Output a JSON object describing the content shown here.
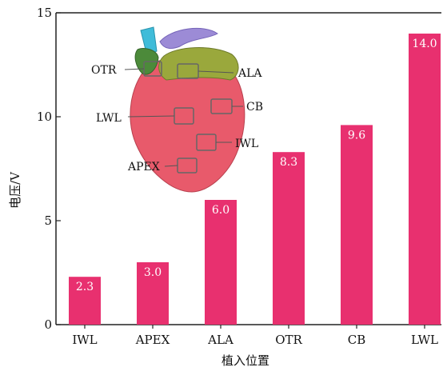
{
  "chart_data": {
    "type": "bar",
    "categories": [
      "IWL",
      "APEX",
      "ALA",
      "OTR",
      "CB",
      "LWL"
    ],
    "values": [
      2.3,
      3.0,
      6.0,
      8.3,
      9.6,
      14.0
    ],
    "data_labels": [
      "2.3",
      "3.0",
      "6.0",
      "8.3",
      "9.6",
      "14.0"
    ],
    "title": "",
    "xlabel": "植入位置",
    "ylabel": "电压/V",
    "ylim": [
      0,
      15
    ],
    "yticks": [
      0,
      5,
      10,
      15
    ],
    "ytick_labels": [
      "0",
      "5",
      "10",
      "15"
    ],
    "grid": false,
    "bar_color": "#e8306f",
    "inset_image": {
      "depicts": "heart-illustration",
      "annotations": [
        "OTR",
        "ALA",
        "CB",
        "LWL",
        "IWL",
        "APEX"
      ]
    }
  }
}
